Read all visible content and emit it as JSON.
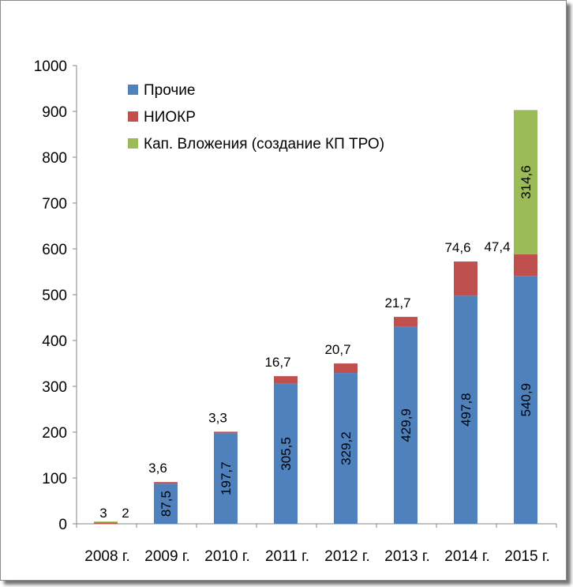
{
  "chart_data": {
    "type": "bar",
    "stacked": true,
    "categories": [
      "2008 г.",
      "2009 г.",
      "2010 г.",
      "2011 г.",
      "2012 г.",
      "2013 г.",
      "2014 г.",
      "2015 г."
    ],
    "series": [
      {
        "name": "Прочие",
        "color": "#4f81bd",
        "values": [
          0,
          87.5,
          197.7,
          305.5,
          329.2,
          429.9,
          497.8,
          540.9
        ],
        "labels": [
          "",
          "87,5",
          "197,7",
          "305,5",
          "329,2",
          "429,9",
          "497,8",
          "540,9"
        ]
      },
      {
        "name": "НИОКР",
        "color": "#c0504d",
        "values": [
          3,
          3.6,
          3.3,
          16.7,
          20.7,
          21.7,
          74.6,
          47.4
        ],
        "labels": [
          "3",
          "3,6",
          "3,3",
          "16,7",
          "20,7",
          "21,7",
          "74,6",
          "47,4"
        ]
      },
      {
        "name": "Кап. Вложения (создание КП ТРО)",
        "color": "#9bbb59",
        "values": [
          2,
          0,
          0,
          0,
          0,
          0,
          0,
          314.6
        ],
        "labels": [
          "2",
          "",
          "",
          "",
          "",
          "",
          "",
          "314,6"
        ]
      }
    ],
    "ylim": [
      0,
      1000
    ],
    "yticks": [
      0,
      100,
      200,
      300,
      400,
      500,
      600,
      700,
      800,
      900,
      1000
    ],
    "grid": false,
    "legend_position": "top-left",
    "title": "",
    "xlabel": "",
    "ylabel": ""
  }
}
